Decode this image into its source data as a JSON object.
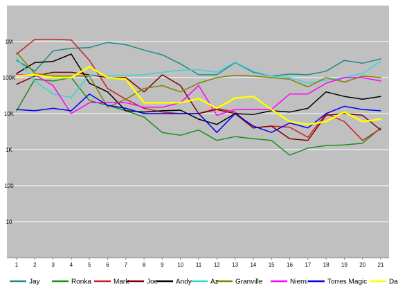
{
  "chart_data": {
    "type": "line",
    "title": "",
    "xlabel": "",
    "ylabel": "",
    "y_scale": "log",
    "ylim": [
      1,
      10000000
    ],
    "grid": "horizontal",
    "legend_position": "bottom",
    "background": "#c0c0c0",
    "x": [
      1,
      2,
      3,
      4,
      5,
      6,
      7,
      8,
      9,
      10,
      11,
      12,
      13,
      14,
      15,
      16,
      17,
      18,
      19,
      20,
      21
    ],
    "x_tick_labels": [
      "1",
      "2",
      "3",
      "4",
      "5",
      "6",
      "7",
      "8",
      "9",
      "10",
      "11",
      "12",
      "13",
      "14",
      "15",
      "16",
      "17",
      "18",
      "19",
      "20",
      "21"
    ],
    "y_ticks": [
      {
        "value": 10,
        "label": "10"
      },
      {
        "value": 100,
        "label": "100"
      },
      {
        "value": 1000,
        "label": "1K"
      },
      {
        "value": 10000,
        "label": "10K"
      },
      {
        "value": 100000,
        "label": "100K"
      },
      {
        "value": 1000000,
        "label": "1M"
      }
    ],
    "series": [
      {
        "name": "Jay",
        "color": "#1f8a8a",
        "width": 1.5,
        "values": [
          300000,
          150000,
          550000,
          650000,
          680000,
          950000,
          820000,
          580000,
          430000,
          240000,
          120000,
          120000,
          260000,
          140000,
          110000,
          125000,
          120000,
          150000,
          300000,
          250000,
          330000
        ]
      },
      {
        "name": "Ronka",
        "color": "#1a8f1a",
        "width": 1.5,
        "values": [
          12000,
          90000,
          80000,
          100000,
          23000,
          17000,
          12000,
          8000,
          3000,
          2500,
          3500,
          1800,
          2300,
          2000,
          1800,
          700,
          1100,
          1300,
          1350,
          1500,
          4000
        ]
      },
      {
        "name": "Mark",
        "color": "#cc2020",
        "width": 1.5,
        "values": [
          450000,
          1150000,
          1150000,
          1100000,
          300000,
          50000,
          25000,
          14000,
          11000,
          10000,
          10000,
          14000,
          11000,
          4000,
          4500,
          4200,
          2200,
          10000,
          6000,
          1800,
          3800
        ]
      },
      {
        "name": "Joe",
        "color": "#800000",
        "width": 1.5,
        "values": [
          65000,
          110000,
          140000,
          140000,
          120000,
          100000,
          100000,
          40000,
          120000,
          60000,
          10000,
          13000,
          10000,
          4000,
          4500,
          2000,
          1800,
          9000,
          10000,
          9000,
          3500
        ]
      },
      {
        "name": "Andy",
        "color": "#000000",
        "width": 1.5,
        "values": [
          130000,
          260000,
          280000,
          450000,
          70000,
          40000,
          12000,
          11000,
          12000,
          12500,
          7000,
          5000,
          10000,
          9500,
          12000,
          11000,
          14000,
          40000,
          30000,
          25000,
          30000
        ]
      },
      {
        "name": "Az",
        "color": "#33d6d6",
        "width": 1.5,
        "values": [
          350000,
          80000,
          35000,
          28000,
          120000,
          110000,
          115000,
          120000,
          140000,
          160000,
          165000,
          140000,
          270000,
          150000,
          110000,
          100000,
          70000,
          85000,
          100000,
          130000,
          280000
        ]
      },
      {
        "name": "Granville",
        "color": "#808000",
        "width": 1.5,
        "values": [
          500000,
          130000,
          110000,
          110000,
          110000,
          15000,
          25000,
          50000,
          60000,
          40000,
          70000,
          100000,
          115000,
          110000,
          100000,
          90000,
          55000,
          100000,
          75000,
          110000,
          100000
        ]
      },
      {
        "name": "Niemi",
        "color": "#ff00ff",
        "width": 1.5,
        "values": [
          120000,
          120000,
          60000,
          10000,
          20000,
          20000,
          20000,
          15000,
          15000,
          20000,
          60000,
          9000,
          13000,
          13000,
          13000,
          35000,
          35000,
          70000,
          100000,
          100000,
          80000
        ]
      },
      {
        "name": "Torres Magic",
        "color": "#0000ee",
        "width": 1.5,
        "values": [
          13000,
          12000,
          14000,
          12000,
          35000,
          17000,
          14000,
          10000,
          10000,
          10000,
          10000,
          3000,
          10000,
          4500,
          3000,
          5500,
          4000,
          10000,
          16000,
          13000,
          12000
        ]
      },
      {
        "name": "David",
        "color": "#ffff00",
        "width": 2.5,
        "values": [
          110000,
          120000,
          100000,
          100000,
          200000,
          100000,
          90000,
          20000,
          20000,
          20000,
          26000,
          14000,
          27000,
          30000,
          13000,
          6000,
          5000,
          6000,
          11000,
          6000,
          7000
        ]
      }
    ]
  }
}
